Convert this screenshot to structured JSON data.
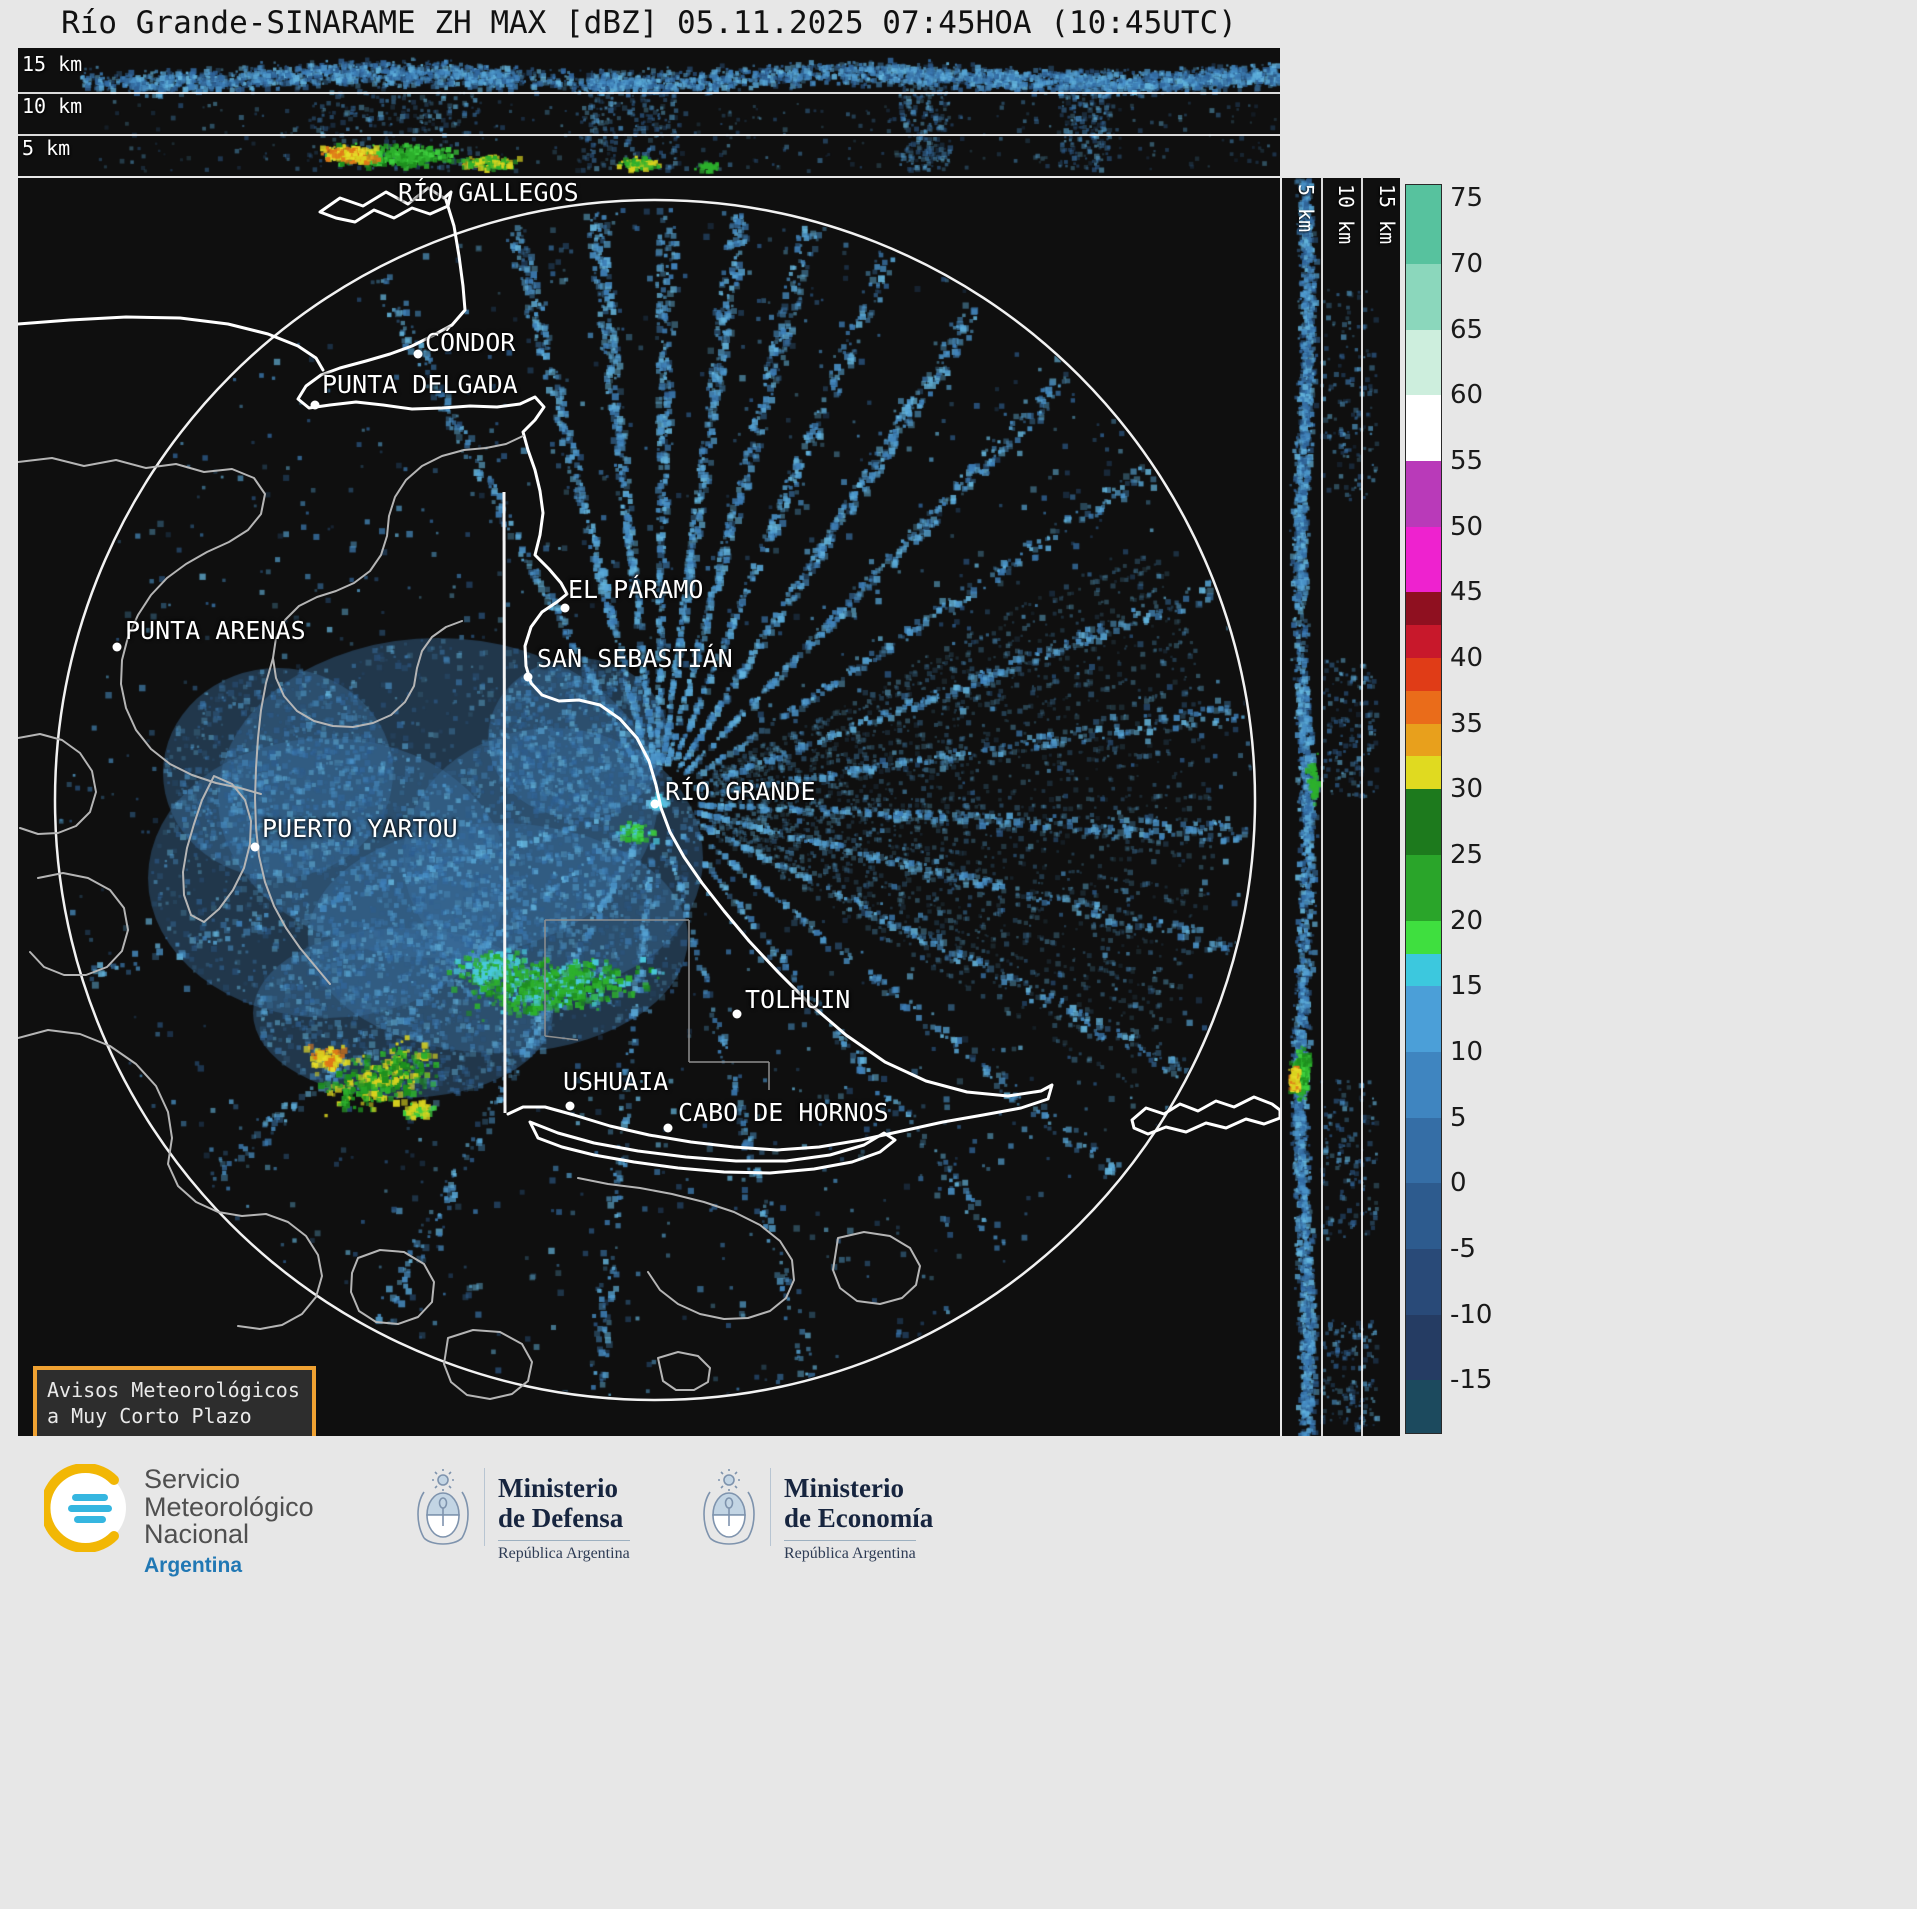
{
  "title": "Río Grande-SINARAME ZH MAX [dBZ] 05.11.2025 07:45HOA (10:45UTC)",
  "panels": {
    "top_profile": {
      "height_labels": [
        "15 km",
        "10 km",
        "5 km"
      ]
    },
    "right_profile": {
      "height_labels": [
        "5 km",
        "10 km",
        "15 km"
      ]
    }
  },
  "map": {
    "cities": [
      {
        "name": "RÍO GALLEGOS",
        "label": [
          380,
          0
        ],
        "dot": null
      },
      {
        "name": "CÓNDOR",
        "label": [
          407,
          150
        ],
        "dot": [
          400,
          176
        ]
      },
      {
        "name": "PUNTA DELGADA",
        "label": [
          304,
          192
        ],
        "dot": [
          297,
          227
        ]
      },
      {
        "name": "EL PÁRAMO",
        "label": [
          550,
          397
        ],
        "dot": [
          547,
          430
        ]
      },
      {
        "name": "SAN SEBASTIÁN",
        "label": [
          519,
          466
        ],
        "dot": [
          510,
          499
        ]
      },
      {
        "name": "PUNTA ARENAS",
        "label": [
          107,
          438
        ],
        "dot": [
          99,
          469
        ]
      },
      {
        "name": "RÍO GRANDE",
        "label": [
          647,
          599
        ],
        "dot": [
          637,
          626
        ]
      },
      {
        "name": "PUERTO YARTOU",
        "label": [
          244,
          636
        ],
        "dot": [
          237,
          669
        ]
      },
      {
        "name": "TOLHUIN",
        "label": [
          727,
          807
        ],
        "dot": [
          719,
          836
        ]
      },
      {
        "name": "USHUAIA",
        "label": [
          545,
          889
        ],
        "dot": [
          552,
          928
        ]
      },
      {
        "name": "CABO DE HORNOS",
        "label": [
          660,
          920
        ],
        "dot": [
          650,
          950
        ]
      }
    ]
  },
  "colorbar": {
    "unit": "dBZ",
    "vmax": 76,
    "vmin": -19,
    "ticks": [
      "75",
      "70",
      "65",
      "60",
      "55",
      "50",
      "45",
      "40",
      "35",
      "30",
      "25",
      "20",
      "15",
      "10",
      "5",
      "0",
      "-5",
      "-10",
      "-15"
    ],
    "segments": [
      {
        "v1": 76,
        "v0": 70,
        "color": "#57c29e"
      },
      {
        "v1": 70,
        "v0": 65,
        "color": "#8bd7bc"
      },
      {
        "v1": 65,
        "v0": 60,
        "color": "#cdeedd"
      },
      {
        "v1": 60,
        "v0": 55,
        "color": "#ffffff"
      },
      {
        "v1": 55,
        "v0": 50,
        "color": "#b93ab9"
      },
      {
        "v1": 50,
        "v0": 45,
        "color": "#ee22cf"
      },
      {
        "v1": 45,
        "v0": 42.5,
        "color": "#8f1020"
      },
      {
        "v1": 42.5,
        "v0": 40,
        "color": "#c8182b"
      },
      {
        "v1": 40,
        "v0": 37.5,
        "color": "#e03c17"
      },
      {
        "v1": 37.5,
        "v0": 35,
        "color": "#ea6c1a"
      },
      {
        "v1": 35,
        "v0": 32.5,
        "color": "#e8a01c"
      },
      {
        "v1": 32.5,
        "v0": 30,
        "color": "#e0da20"
      },
      {
        "v1": 30,
        "v0": 25,
        "color": "#1d7a1d"
      },
      {
        "v1": 25,
        "v0": 20,
        "color": "#2aa52a"
      },
      {
        "v1": 20,
        "v0": 17.5,
        "color": "#3fdf3f"
      },
      {
        "v1": 17.5,
        "v0": 15,
        "color": "#3cc8de"
      },
      {
        "v1": 15,
        "v0": 10,
        "color": "#4b9fd8"
      },
      {
        "v1": 10,
        "v0": 5,
        "color": "#3f85c0"
      },
      {
        "v1": 5,
        "v0": 0,
        "color": "#356ea6"
      },
      {
        "v1": 0,
        "v0": -5,
        "color": "#2d5b8e"
      },
      {
        "v1": -5,
        "v0": -10,
        "color": "#294a78"
      },
      {
        "v1": -10,
        "v0": -15,
        "color": "#253c63"
      },
      {
        "v1": -15,
        "v0": -19,
        "color": "#1c4a5e"
      }
    ]
  },
  "alert_box": {
    "line1": "Avisos Meteorológicos",
    "line2": "a Muy Corto Plazo",
    "border_color": "#f0a232"
  },
  "footer": {
    "smn": {
      "lines": [
        "Servicio",
        "Meteorológico",
        "Nacional"
      ],
      "country": "Argentina"
    },
    "defensa": {
      "l1": "Ministerio",
      "l2": "de Defensa",
      "sub": "República Argentina"
    },
    "economia": {
      "l1": "Ministerio",
      "l2": "de Economía",
      "sub": "República Argentina"
    }
  },
  "echo_palette": {
    "blues": [
      "#2d5d8f",
      "#336ba3",
      "#3e7fb8",
      "#4a93c9",
      "#57a6d6",
      "#66b8e0"
    ],
    "cyan": "#49c9de",
    "greens": [
      "#1e8f1e",
      "#2db02d",
      "#3ecf3e"
    ],
    "yellows": [
      "#d9d31f",
      "#e8e02a"
    ],
    "orange": "#e07818"
  }
}
